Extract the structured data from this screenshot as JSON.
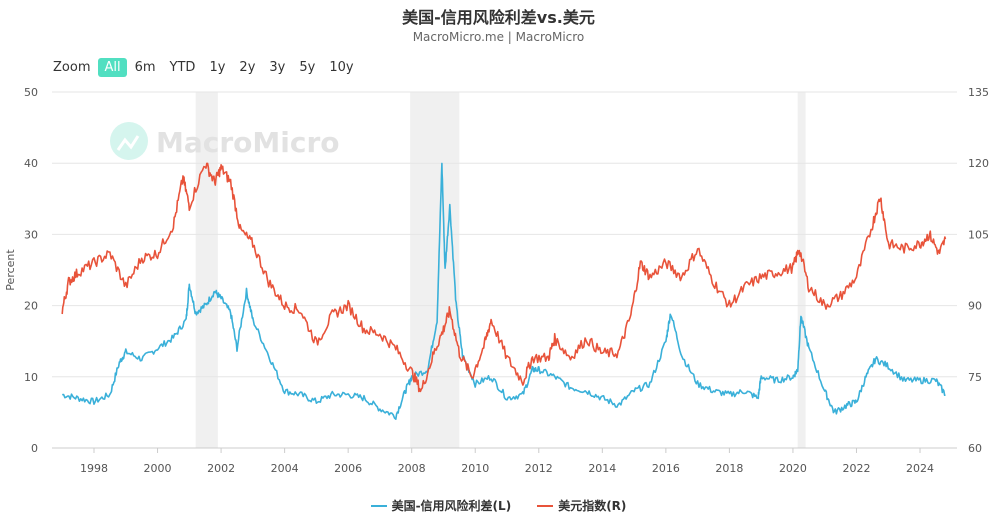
{
  "chart_data": {
    "type": "line",
    "title": "美国-信用风险利差vs.美元",
    "subtitle": "MacroMicro.me | MacroMicro",
    "watermark": "MacroMicro",
    "ylabel_left": "Percent",
    "ylim_left": [
      0,
      50
    ],
    "yticks_left": [
      "0",
      "10",
      "20",
      "30",
      "40",
      "50"
    ],
    "ylim_right": [
      60,
      135
    ],
    "yticks_right": [
      "60",
      "75",
      "90",
      "105",
      "120",
      "135"
    ],
    "xlim": [
      1996.7,
      2025.3
    ],
    "xticks": [
      "1998",
      "2000",
      "2002",
      "2004",
      "2006",
      "2008",
      "2010",
      "2012",
      "2014",
      "2016",
      "2018",
      "2020",
      "2022",
      "2024"
    ],
    "recessions": [
      [
        2001.2,
        2001.9
      ],
      [
        2007.95,
        2009.5
      ],
      [
        2020.15,
        2020.4
      ]
    ],
    "legend_position": "bottom",
    "series": [
      {
        "name": "美国-信用风险利差(L)",
        "axis": "left",
        "color": "#3ab0d9",
        "x": [
          1997.0,
          1997.5,
          1998.0,
          1998.5,
          1998.8,
          1999.0,
          1999.5,
          2000.0,
          2000.5,
          2000.9,
          2001.0,
          2001.2,
          2001.5,
          2001.8,
          2002.0,
          2002.3,
          2002.5,
          2002.8,
          2003.0,
          2003.5,
          2004.0,
          2004.5,
          2005.0,
          2005.5,
          2006.0,
          2006.5,
          2007.0,
          2007.5,
          2007.8,
          2008.0,
          2008.5,
          2008.8,
          2008.95,
          2009.05,
          2009.2,
          2009.4,
          2009.6,
          2010.0,
          2010.5,
          2011.0,
          2011.5,
          2011.8,
          2012.0,
          2012.5,
          2013.0,
          2013.5,
          2014.0,
          2014.5,
          2015.0,
          2015.5,
          2016.0,
          2016.15,
          2016.5,
          2017.0,
          2017.5,
          2018.0,
          2018.5,
          2018.9,
          2019.0,
          2019.5,
          2020.0,
          2020.15,
          2020.25,
          2020.5,
          2021.0,
          2021.3,
          2021.7,
          2022.0,
          2022.3,
          2022.6,
          2023.0,
          2023.5,
          2024.0,
          2024.5,
          2024.8
        ],
        "values": [
          7.5,
          7,
          6.5,
          7.5,
          12,
          13.5,
          12.5,
          14,
          15.5,
          18,
          23,
          19,
          20,
          22,
          21,
          19,
          14,
          22,
          18,
          13,
          8,
          7.5,
          6.5,
          7.5,
          7.5,
          7,
          5.5,
          4.5,
          8,
          10,
          11,
          18,
          40,
          25,
          34,
          20,
          13,
          9,
          10,
          7,
          7.5,
          11,
          11,
          10,
          8.5,
          8,
          7,
          6,
          8,
          9,
          15,
          19,
          13,
          9,
          8,
          7.5,
          8,
          7,
          10,
          9.5,
          10,
          11,
          18.5,
          14,
          8,
          5,
          6,
          6.5,
          10,
          12.5,
          11.5,
          9.5,
          9.5,
          9.5,
          7.5
        ]
      },
      {
        "name": "美元指数(R)",
        "axis": "right",
        "color": "#e8533a",
        "x": [
          1997.0,
          1997.2,
          1997.5,
          1998.0,
          1998.5,
          1999.0,
          1999.5,
          2000.0,
          2000.5,
          2000.8,
          2001.0,
          2001.5,
          2001.8,
          2002.0,
          2002.3,
          2002.6,
          2003.0,
          2003.5,
          2004.0,
          2004.5,
          2005.0,
          2005.5,
          2006.0,
          2006.5,
          2007.0,
          2007.5,
          2008.0,
          2008.3,
          2008.7,
          2009.0,
          2009.2,
          2009.5,
          2009.9,
          2010.3,
          2010.5,
          2011.0,
          2011.5,
          2011.8,
          2012.3,
          2012.5,
          2013.0,
          2013.5,
          2014.0,
          2014.5,
          2014.9,
          2015.2,
          2015.5,
          2016.0,
          2016.5,
          2017.0,
          2017.5,
          2018.0,
          2018.5,
          2019.0,
          2019.5,
          2020.0,
          2020.2,
          2020.5,
          2021.0,
          2021.5,
          2022.0,
          2022.5,
          2022.75,
          2023.0,
          2023.5,
          2024.0,
          2024.3,
          2024.6,
          2024.8
        ],
        "values": [
          89,
          95,
          97,
          99,
          101,
          94,
          100,
          101,
          107,
          117,
          111,
          120,
          116,
          119,
          116,
          106,
          103,
          95,
          90,
          89,
          82,
          88,
          90,
          85,
          84,
          81,
          76,
          72,
          80,
          85,
          89,
          80,
          75,
          82,
          87,
          79,
          74,
          79,
          79,
          83,
          79,
          83,
          80,
          80,
          88,
          99,
          96,
          99,
          96,
          102,
          95,
          90,
          94,
          96,
          97,
          98,
          102,
          94,
          90,
          92,
          96,
          107,
          113,
          103,
          102,
          103,
          105,
          101,
          104
        ]
      }
    ]
  },
  "zoom": {
    "label": "Zoom",
    "buttons": [
      "All",
      "6m",
      "YTD",
      "1y",
      "2y",
      "3y",
      "5y",
      "10y"
    ],
    "active": "All"
  }
}
